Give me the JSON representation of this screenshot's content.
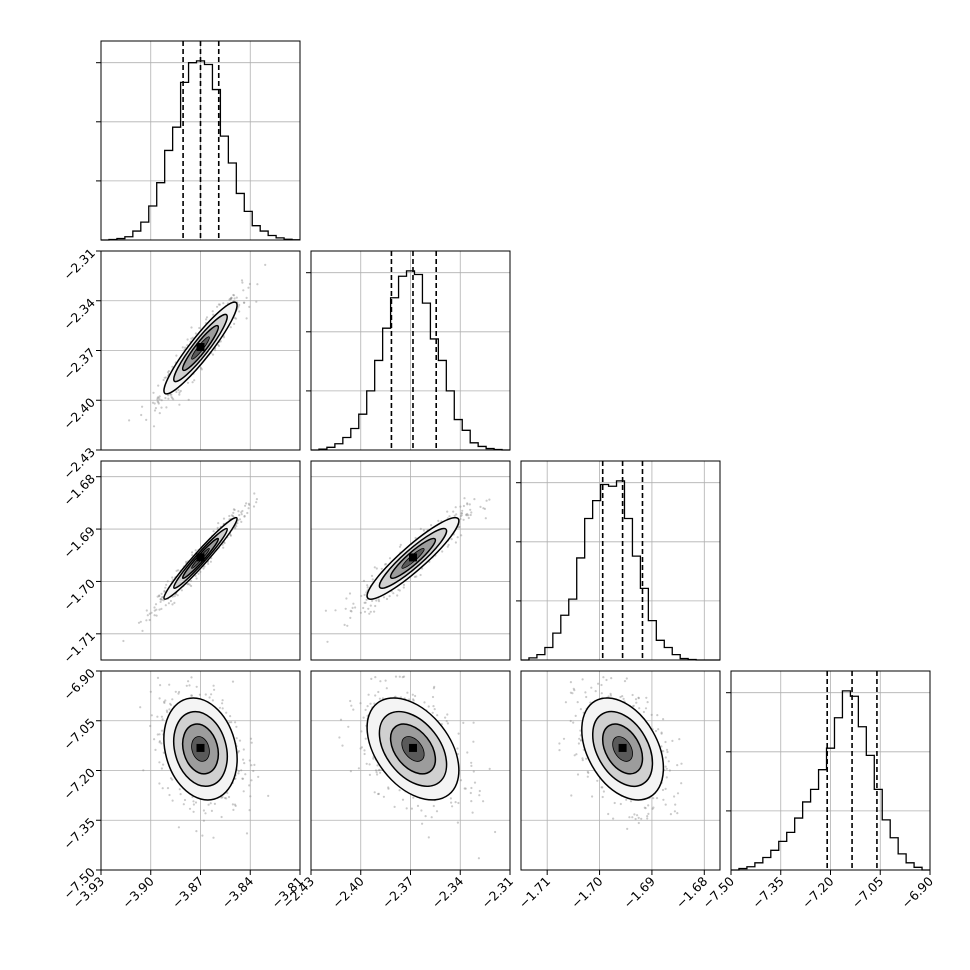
{
  "chart_data": {
    "type": "corner",
    "grid": true,
    "parameters": [
      {
        "range": [
          -3.93,
          -3.81
        ],
        "ticks": [
          "−3.93",
          "−3.90",
          "−3.87",
          "−3.84",
          "−3.81"
        ],
        "median": -3.87,
        "q16": -3.8805,
        "q84": -3.859,
        "hist_bins": [
          0.0,
          0.003,
          0.008,
          0.018,
          0.05,
          0.1,
          0.19,
          0.32,
          0.5,
          0.63,
          0.88,
          0.99,
          1.0,
          0.98,
          0.84,
          0.58,
          0.43,
          0.26,
          0.16,
          0.08,
          0.05,
          0.025,
          0.012,
          0.004,
          0.001
        ]
      },
      {
        "range": [
          -2.43,
          -2.31
        ],
        "ticks": [
          "−2.43",
          "−2.40",
          "−2.37",
          "−2.34",
          "−2.31"
        ],
        "median": -2.3685,
        "q16": -2.3815,
        "q84": -2.3545,
        "hist_bins": [
          0.0,
          0.005,
          0.015,
          0.035,
          0.07,
          0.12,
          0.2,
          0.33,
          0.5,
          0.68,
          0.85,
          0.97,
          1.0,
          0.98,
          0.82,
          0.62,
          0.5,
          0.33,
          0.17,
          0.11,
          0.04,
          0.02,
          0.008,
          0.003,
          0.0
        ]
      },
      {
        "range": [
          -1.715,
          -1.677
        ],
        "ticks": [
          "−1.71",
          "−1.70",
          "−1.69",
          "−1.68"
        ],
        "tick_values": [
          -1.71,
          -1.7,
          -1.69,
          -1.68
        ],
        "median": -1.6956,
        "q16": -1.6994,
        "q84": -1.6918,
        "hist_bins": [
          0.0,
          0.012,
          0.03,
          0.07,
          0.15,
          0.25,
          0.34,
          0.57,
          0.79,
          0.89,
          0.98,
          0.97,
          1.0,
          0.79,
          0.58,
          0.4,
          0.22,
          0.11,
          0.07,
          0.03,
          0.008,
          0.003,
          0.0,
          0.0,
          0.0
        ]
      },
      {
        "range": [
          -7.5,
          -6.9
        ],
        "ticks": [
          "−7.50",
          "−7.35",
          "−7.20",
          "−7.05",
          "−6.90"
        ],
        "median": -7.135,
        "q16": -7.21,
        "q84": -7.06,
        "hist_bins": [
          0.0,
          0.008,
          0.018,
          0.04,
          0.07,
          0.11,
          0.16,
          0.21,
          0.29,
          0.38,
          0.45,
          0.56,
          0.68,
          0.85,
          1.0,
          0.97,
          0.8,
          0.64,
          0.45,
          0.28,
          0.18,
          0.09,
          0.04,
          0.015,
          0.0
        ]
      }
    ],
    "pairs": [
      {
        "x": 0,
        "y": 1,
        "corr": 0.93
      },
      {
        "x": 0,
        "y": 2,
        "corr": 0.97
      },
      {
        "x": 1,
        "y": 2,
        "corr": 0.92
      },
      {
        "x": 0,
        "y": 3,
        "corr": -0.2
      },
      {
        "x": 1,
        "y": 3,
        "corr": -0.42
      },
      {
        "x": 2,
        "y": 3,
        "corr": -0.38
      }
    ]
  }
}
